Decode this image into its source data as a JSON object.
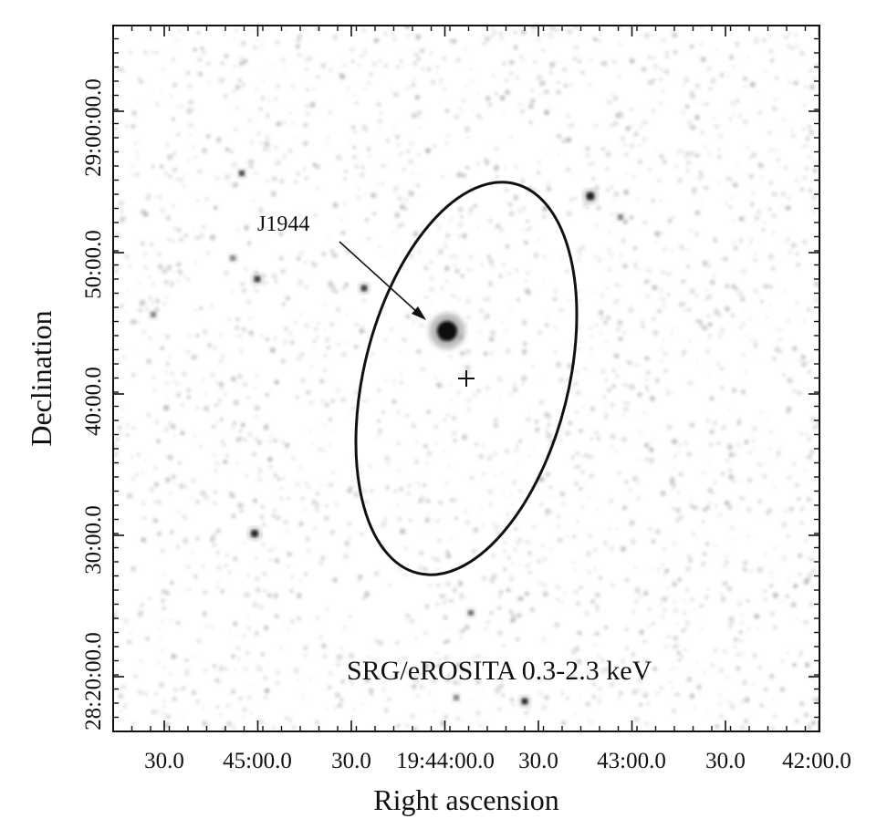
{
  "figure": {
    "source_label": "J1944",
    "band_label": "SRG/eROSITA 0.3-2.3 keV",
    "x_axis": {
      "label": "Right ascension",
      "ticks": [
        "30.0",
        "45:00.0",
        "30.0",
        "19:44:00.0",
        "30.0",
        "43:00.0",
        "30.0",
        "42:00.0"
      ]
    },
    "y_axis": {
      "label": "Declination",
      "ticks": [
        "28:20:00.0",
        "30:00.0",
        "40:00.0",
        "50:00.0",
        "29:00:00.0"
      ]
    },
    "colors": {
      "background": "#ffffff",
      "ink": "#111111"
    },
    "markers": [
      "error-ellipse",
      "cross-center",
      "arrow-to-source"
    ]
  }
}
